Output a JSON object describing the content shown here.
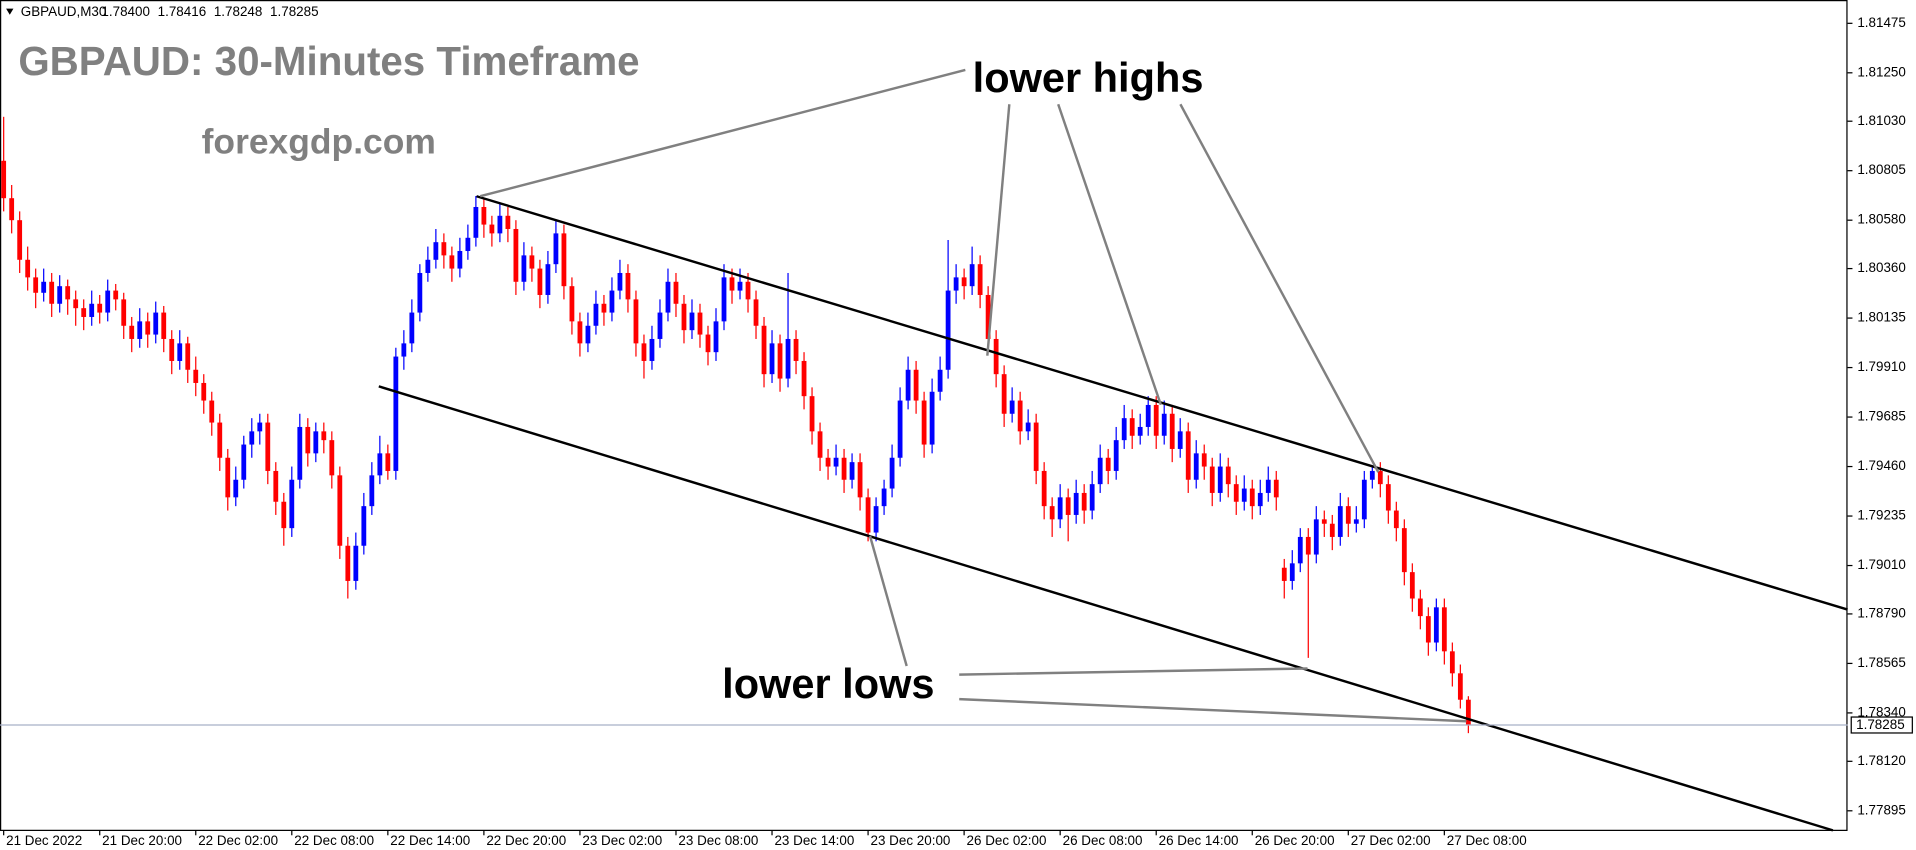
{
  "chart_data": {
    "type": "candlestick",
    "symbol": "GBPAUD,M30",
    "header_labels": [
      "1.78400",
      "1.78416",
      "1.78248",
      "1.78285"
    ],
    "title": "GBPAUD: 30-Minutes Timeframe",
    "subtitle": "forexgdp.com",
    "annotations": [
      "lower highs",
      "lower lows"
    ],
    "up_color": "#0000ff",
    "down_color": "#ff0000",
    "xlim": [
      -0.458,
      230.38
    ],
    "xticks": [
      {
        "value": 0,
        "label": "21 Dec 2022"
      },
      {
        "value": 12,
        "label": "21 Dec 20:00"
      },
      {
        "value": 24,
        "label": "22 Dec 02:00"
      },
      {
        "value": 36,
        "label": "22 Dec 08:00"
      },
      {
        "value": 48,
        "label": "22 Dec 14:00"
      },
      {
        "value": 60,
        "label": "22 Dec 20:00"
      },
      {
        "value": 72,
        "label": "23 Dec 02:00"
      },
      {
        "value": 84,
        "label": "23 Dec 08:00"
      },
      {
        "value": 96,
        "label": "23 Dec 14:00"
      },
      {
        "value": 108,
        "label": "23 Dec 20:00"
      },
      {
        "value": 120,
        "label": "26 Dec 02:00"
      },
      {
        "value": 132,
        "label": "26 Dec 08:00"
      },
      {
        "value": 144,
        "label": "26 Dec 14:00"
      },
      {
        "value": 156,
        "label": "26 Dec 20:00"
      },
      {
        "value": 168,
        "label": "27 Dec 02:00"
      },
      {
        "value": 180,
        "label": "27 Dec 08:00"
      }
    ],
    "ylim": [
      1.77806,
      1.81581
    ],
    "yticks": [
      1.81475,
      {
        "value": 1.8125,
        "label": "1.81250"
      },
      {
        "value": 1.8103,
        "label": "1.81030"
      },
      1.80805,
      {
        "value": 1.8058,
        "label": "1.80580"
      },
      {
        "value": 1.8036,
        "label": "1.80360"
      },
      1.80135,
      {
        "value": 1.7991,
        "label": "1.79910"
      },
      1.79685,
      {
        "value": 1.7946,
        "label": "1.79460"
      },
      1.79235,
      {
        "value": 1.7901,
        "label": "1.79010"
      },
      {
        "value": 1.7879,
        "label": "1.78790"
      },
      1.78565,
      {
        "value": 1.7834,
        "label": "1.78340"
      },
      {
        "value": 1.7812,
        "label": "1.78120"
      },
      1.77895
    ],
    "ohlc": [
      [
        1.8085,
        1.8105,
        1.8062,
        1.8068
      ],
      [
        1.8068,
        1.8074,
        1.8052,
        1.8058
      ],
      [
        1.8058,
        1.8062,
        1.8034,
        1.804
      ],
      [
        1.804,
        1.8046,
        1.8026,
        1.8032
      ],
      [
        1.8032,
        1.8036,
        1.8018,
        1.8025
      ],
      [
        1.8025,
        1.8036,
        1.8021,
        1.803
      ],
      [
        1.803,
        1.8034,
        1.8014,
        1.802
      ],
      [
        1.802,
        1.8033,
        1.8016,
        1.8028
      ],
      [
        1.8028,
        1.8031,
        1.8015,
        1.8022
      ],
      [
        1.8022,
        1.8026,
        1.801,
        1.8018
      ],
      [
        1.8018,
        1.8022,
        1.8008,
        1.8014
      ],
      [
        1.8014,
        1.8026,
        1.801,
        1.802
      ],
      [
        1.802,
        1.8024,
        1.8011,
        1.8016
      ],
      [
        1.8016,
        1.8031,
        1.8012,
        1.8026
      ],
      [
        1.8026,
        1.8029,
        1.8017,
        1.8022
      ],
      [
        1.8022,
        1.8025,
        1.8004,
        1.801
      ],
      [
        1.801,
        1.8014,
        1.7998,
        1.8004
      ],
      [
        1.8004,
        1.8018,
        1.8,
        1.8012
      ],
      [
        1.8012,
        1.8016,
        1.8,
        1.8006
      ],
      [
        1.8006,
        1.8021,
        1.8002,
        1.8016
      ],
      [
        1.8016,
        1.8019,
        1.7998,
        1.8004
      ],
      [
        1.8004,
        1.8008,
        1.7988,
        1.7994
      ],
      [
        1.7994,
        1.8008,
        1.799,
        1.8002
      ],
      [
        1.8002,
        1.8005,
        1.7984,
        1.799
      ],
      [
        1.799,
        1.7996,
        1.7978,
        1.7984
      ],
      [
        1.7984,
        1.7988,
        1.797,
        1.7976
      ],
      [
        1.7976,
        1.798,
        1.796,
        1.7966
      ],
      [
        1.7966,
        1.797,
        1.7944,
        1.795
      ],
      [
        1.795,
        1.7954,
        1.7926,
        1.7932
      ],
      [
        1.7932,
        1.7946,
        1.7928,
        1.794
      ],
      [
        1.794,
        1.796,
        1.7936,
        1.7956
      ],
      [
        1.7956,
        1.7968,
        1.795,
        1.7962
      ],
      [
        1.7962,
        1.797,
        1.7956,
        1.7966
      ],
      [
        1.7966,
        1.797,
        1.7938,
        1.7944
      ],
      [
        1.7944,
        1.7948,
        1.7924,
        1.793
      ],
      [
        1.793,
        1.7934,
        1.791,
        1.7918
      ],
      [
        1.7918,
        1.7946,
        1.7914,
        1.794
      ],
      [
        1.794,
        1.797,
        1.7936,
        1.7964
      ],
      [
        1.7964,
        1.7968,
        1.7946,
        1.7952
      ],
      [
        1.7952,
        1.7966,
        1.7948,
        1.7962
      ],
      [
        1.7962,
        1.7966,
        1.7952,
        1.7958
      ],
      [
        1.7958,
        1.7962,
        1.7936,
        1.7942
      ],
      [
        1.7942,
        1.7946,
        1.7904,
        1.791
      ],
      [
        1.791,
        1.7914,
        1.7886,
        1.7894
      ],
      [
        1.7894,
        1.7916,
        1.789,
        1.791
      ],
      [
        1.791,
        1.7934,
        1.7906,
        1.7928
      ],
      [
        1.7928,
        1.7948,
        1.7924,
        1.7942
      ],
      [
        1.7942,
        1.796,
        1.7938,
        1.7952
      ],
      [
        1.7952,
        1.7956,
        1.794,
        1.7944
      ],
      [
        1.7944,
        1.8,
        1.794,
        1.7996
      ],
      [
        1.7996,
        1.8008,
        1.799,
        1.8002
      ],
      [
        1.8002,
        1.8022,
        1.7998,
        1.8016
      ],
      [
        1.8016,
        1.8038,
        1.8012,
        1.8034
      ],
      [
        1.8034,
        1.8046,
        1.803,
        1.804
      ],
      [
        1.804,
        1.8054,
        1.8036,
        1.8048
      ],
      [
        1.8048,
        1.8052,
        1.8036,
        1.8042
      ],
      [
        1.8042,
        1.8046,
        1.803,
        1.8036
      ],
      [
        1.8036,
        1.805,
        1.8032,
        1.8044
      ],
      [
        1.8044,
        1.8056,
        1.804,
        1.805
      ],
      [
        1.805,
        1.8069,
        1.8046,
        1.8064
      ],
      [
        1.8064,
        1.8068,
        1.805,
        1.8056
      ],
      [
        1.8056,
        1.806,
        1.8046,
        1.8052
      ],
      [
        1.8052,
        1.8066,
        1.8048,
        1.806
      ],
      [
        1.806,
        1.8064,
        1.8048,
        1.8054
      ],
      [
        1.8054,
        1.8058,
        1.8024,
        1.803
      ],
      [
        1.803,
        1.8048,
        1.8026,
        1.8042
      ],
      [
        1.8042,
        1.8046,
        1.803,
        1.8036
      ],
      [
        1.8036,
        1.804,
        1.8018,
        1.8024
      ],
      [
        1.8024,
        1.8044,
        1.802,
        1.8038
      ],
      [
        1.8038,
        1.8058,
        1.8034,
        1.8052
      ],
      [
        1.8052,
        1.8056,
        1.8022,
        1.8028
      ],
      [
        1.8028,
        1.8032,
        1.8006,
        1.8012
      ],
      [
        1.8012,
        1.8016,
        1.7996,
        1.8002
      ],
      [
        1.8002,
        1.8016,
        1.7998,
        1.801
      ],
      [
        1.801,
        1.8026,
        1.8006,
        1.802
      ],
      [
        1.802,
        1.8024,
        1.801,
        1.8016
      ],
      [
        1.8016,
        1.8032,
        1.8012,
        1.8026
      ],
      [
        1.8026,
        1.804,
        1.8022,
        1.8034
      ],
      [
        1.8034,
        1.8038,
        1.8016,
        1.8022
      ],
      [
        1.8022,
        1.8026,
        1.7996,
        1.8002
      ],
      [
        1.8002,
        1.8006,
        1.7986,
        1.7994
      ],
      [
        1.7994,
        1.801,
        1.799,
        1.8004
      ],
      [
        1.8004,
        1.8022,
        1.8,
        1.8016
      ],
      [
        1.8016,
        1.8036,
        1.8012,
        1.803
      ],
      [
        1.803,
        1.8034,
        1.8014,
        1.802
      ],
      [
        1.802,
        1.8024,
        1.8002,
        1.8008
      ],
      [
        1.8008,
        1.8022,
        1.8004,
        1.8016
      ],
      [
        1.8016,
        1.802,
        1.8,
        1.8006
      ],
      [
        1.8006,
        1.801,
        1.7992,
        1.7998
      ],
      [
        1.7998,
        1.8018,
        1.7994,
        1.8012
      ],
      [
        1.8012,
        1.8038,
        1.8008,
        1.8032
      ],
      [
        1.8032,
        1.8036,
        1.802,
        1.8026
      ],
      [
        1.8026,
        1.8036,
        1.8022,
        1.803
      ],
      [
        1.803,
        1.8034,
        1.8016,
        1.8022
      ],
      [
        1.8022,
        1.8026,
        1.8004,
        1.801
      ],
      [
        1.801,
        1.8014,
        1.7982,
        1.7988
      ],
      [
        1.7988,
        1.8008,
        1.7984,
        1.8002
      ],
      [
        1.8002,
        1.8006,
        1.798,
        1.7986
      ],
      [
        1.7986,
        1.8034,
        1.7982,
        1.8004
      ],
      [
        1.8004,
        1.8008,
        1.7988,
        1.7994
      ],
      [
        1.7994,
        1.7998,
        1.7972,
        1.7978
      ],
      [
        1.7978,
        1.7982,
        1.7956,
        1.7962
      ],
      [
        1.7962,
        1.7966,
        1.7944,
        1.795
      ],
      [
        1.795,
        1.7954,
        1.794,
        1.7946
      ],
      [
        1.7946,
        1.7956,
        1.7942,
        1.795
      ],
      [
        1.795,
        1.7954,
        1.7934,
        1.794
      ],
      [
        1.794,
        1.7952,
        1.7936,
        1.7948
      ],
      [
        1.7948,
        1.7952,
        1.7926,
        1.7932
      ],
      [
        1.7932,
        1.7936,
        1.7912,
        1.7916
      ],
      [
        1.7916,
        1.7932,
        1.7912,
        1.7928
      ],
      [
        1.7928,
        1.794,
        1.7924,
        1.7936
      ],
      [
        1.7936,
        1.7956,
        1.7932,
        1.795
      ],
      [
        1.795,
        1.7982,
        1.7946,
        1.7976
      ],
      [
        1.7976,
        1.7996,
        1.7972,
        1.799
      ],
      [
        1.799,
        1.7994,
        1.797,
        1.7976
      ],
      [
        1.7976,
        1.798,
        1.795,
        1.7956
      ],
      [
        1.7956,
        1.7986,
        1.7952,
        1.798
      ],
      [
        1.798,
        1.7996,
        1.7976,
        1.799
      ],
      [
        1.799,
        1.8049,
        1.7986,
        1.8026
      ],
      [
        1.8026,
        1.8038,
        1.802,
        1.8032
      ],
      [
        1.8032,
        1.8036,
        1.8022,
        1.8028
      ],
      [
        1.8028,
        1.8046,
        1.8024,
        1.8038
      ],
      [
        1.8038,
        1.8042,
        1.8018,
        1.8024
      ],
      [
        1.8024,
        1.8028,
        1.7998,
        1.8004
      ],
      [
        1.8004,
        1.8008,
        1.7982,
        1.7988
      ],
      [
        1.7988,
        1.7992,
        1.7964,
        1.797
      ],
      [
        1.797,
        1.7982,
        1.7966,
        1.7976
      ],
      [
        1.7976,
        1.798,
        1.7956,
        1.7962
      ],
      [
        1.7962,
        1.7972,
        1.7958,
        1.7966
      ],
      [
        1.7966,
        1.797,
        1.7938,
        1.7944
      ],
      [
        1.7944,
        1.7948,
        1.7922,
        1.7928
      ],
      [
        1.7928,
        1.7932,
        1.7914,
        1.7922
      ],
      [
        1.7922,
        1.7938,
        1.7918,
        1.7932
      ],
      [
        1.7932,
        1.7936,
        1.7912,
        1.7924
      ],
      [
        1.7924,
        1.794,
        1.792,
        1.7934
      ],
      [
        1.7934,
        1.7938,
        1.792,
        1.7926
      ],
      [
        1.7926,
        1.7944,
        1.7922,
        1.7938
      ],
      [
        1.7938,
        1.7956,
        1.7934,
        1.795
      ],
      [
        1.795,
        1.7954,
        1.7938,
        1.7944
      ],
      [
        1.7944,
        1.7964,
        1.794,
        1.7958
      ],
      [
        1.7958,
        1.7974,
        1.7954,
        1.7968
      ],
      [
        1.7968,
        1.7972,
        1.7954,
        1.796
      ],
      [
        1.796,
        1.797,
        1.7956,
        1.7964
      ],
      [
        1.7964,
        1.7978,
        1.796,
        1.7974
      ],
      [
        1.7974,
        1.7978,
        1.7954,
        1.796
      ],
      [
        1.796,
        1.7976,
        1.7956,
        1.797
      ],
      [
        1.797,
        1.7974,
        1.7948,
        1.7954
      ],
      [
        1.7954,
        1.7968,
        1.795,
        1.7962
      ],
      [
        1.7962,
        1.7966,
        1.7934,
        1.794
      ],
      [
        1.794,
        1.7958,
        1.7936,
        1.7952
      ],
      [
        1.7952,
        1.7956,
        1.794,
        1.7946
      ],
      [
        1.7946,
        1.795,
        1.7928,
        1.7934
      ],
      [
        1.7934,
        1.7952,
        1.793,
        1.7946
      ],
      [
        1.7946,
        1.795,
        1.7932,
        1.7938
      ],
      [
        1.7938,
        1.7942,
        1.7924,
        1.793
      ],
      [
        1.793,
        1.7942,
        1.7926,
        1.7936
      ],
      [
        1.7936,
        1.794,
        1.7922,
        1.7928
      ],
      [
        1.7928,
        1.794,
        1.7924,
        1.7934
      ],
      [
        1.7934,
        1.7946,
        1.793,
        1.794
      ],
      [
        1.794,
        1.7944,
        1.7926,
        1.7932
      ],
      [
        1.79,
        1.7904,
        1.7886,
        1.7894
      ],
      [
        1.7894,
        1.7908,
        1.789,
        1.7902
      ],
      [
        1.7902,
        1.7918,
        1.7898,
        1.7914
      ],
      [
        1.7914,
        1.7918,
        1.7859,
        1.7906
      ],
      [
        1.7906,
        1.7928,
        1.7902,
        1.7922
      ],
      [
        1.7922,
        1.7926,
        1.7914,
        1.792
      ],
      [
        1.792,
        1.7924,
        1.7908,
        1.7914
      ],
      [
        1.7914,
        1.7934,
        1.791,
        1.7928
      ],
      [
        1.7928,
        1.7932,
        1.7914,
        1.792
      ],
      [
        1.792,
        1.7928,
        1.7916,
        1.7922
      ],
      [
        1.7922,
        1.7944,
        1.7918,
        1.794
      ],
      [
        1.794,
        1.7946,
        1.7936,
        1.7944
      ],
      [
        1.7944,
        1.7948,
        1.7932,
        1.7938
      ],
      [
        1.7938,
        1.7942,
        1.792,
        1.7926
      ],
      [
        1.7926,
        1.793,
        1.7912,
        1.7918
      ],
      [
        1.7918,
        1.7922,
        1.7892,
        1.7898
      ],
      [
        1.7898,
        1.7902,
        1.788,
        1.7886
      ],
      [
        1.7886,
        1.789,
        1.7872,
        1.7878
      ],
      [
        1.7878,
        1.7882,
        1.786,
        1.7866
      ],
      [
        1.7866,
        1.7886,
        1.7862,
        1.7882
      ],
      [
        1.7882,
        1.7886,
        1.7856,
        1.7862
      ],
      [
        1.7862,
        1.7866,
        1.7846,
        1.7852
      ],
      [
        1.7852,
        1.7856,
        1.7836,
        1.784
      ],
      [
        1.784,
        1.78416,
        1.78248,
        1.78285
      ]
    ]
  }
}
